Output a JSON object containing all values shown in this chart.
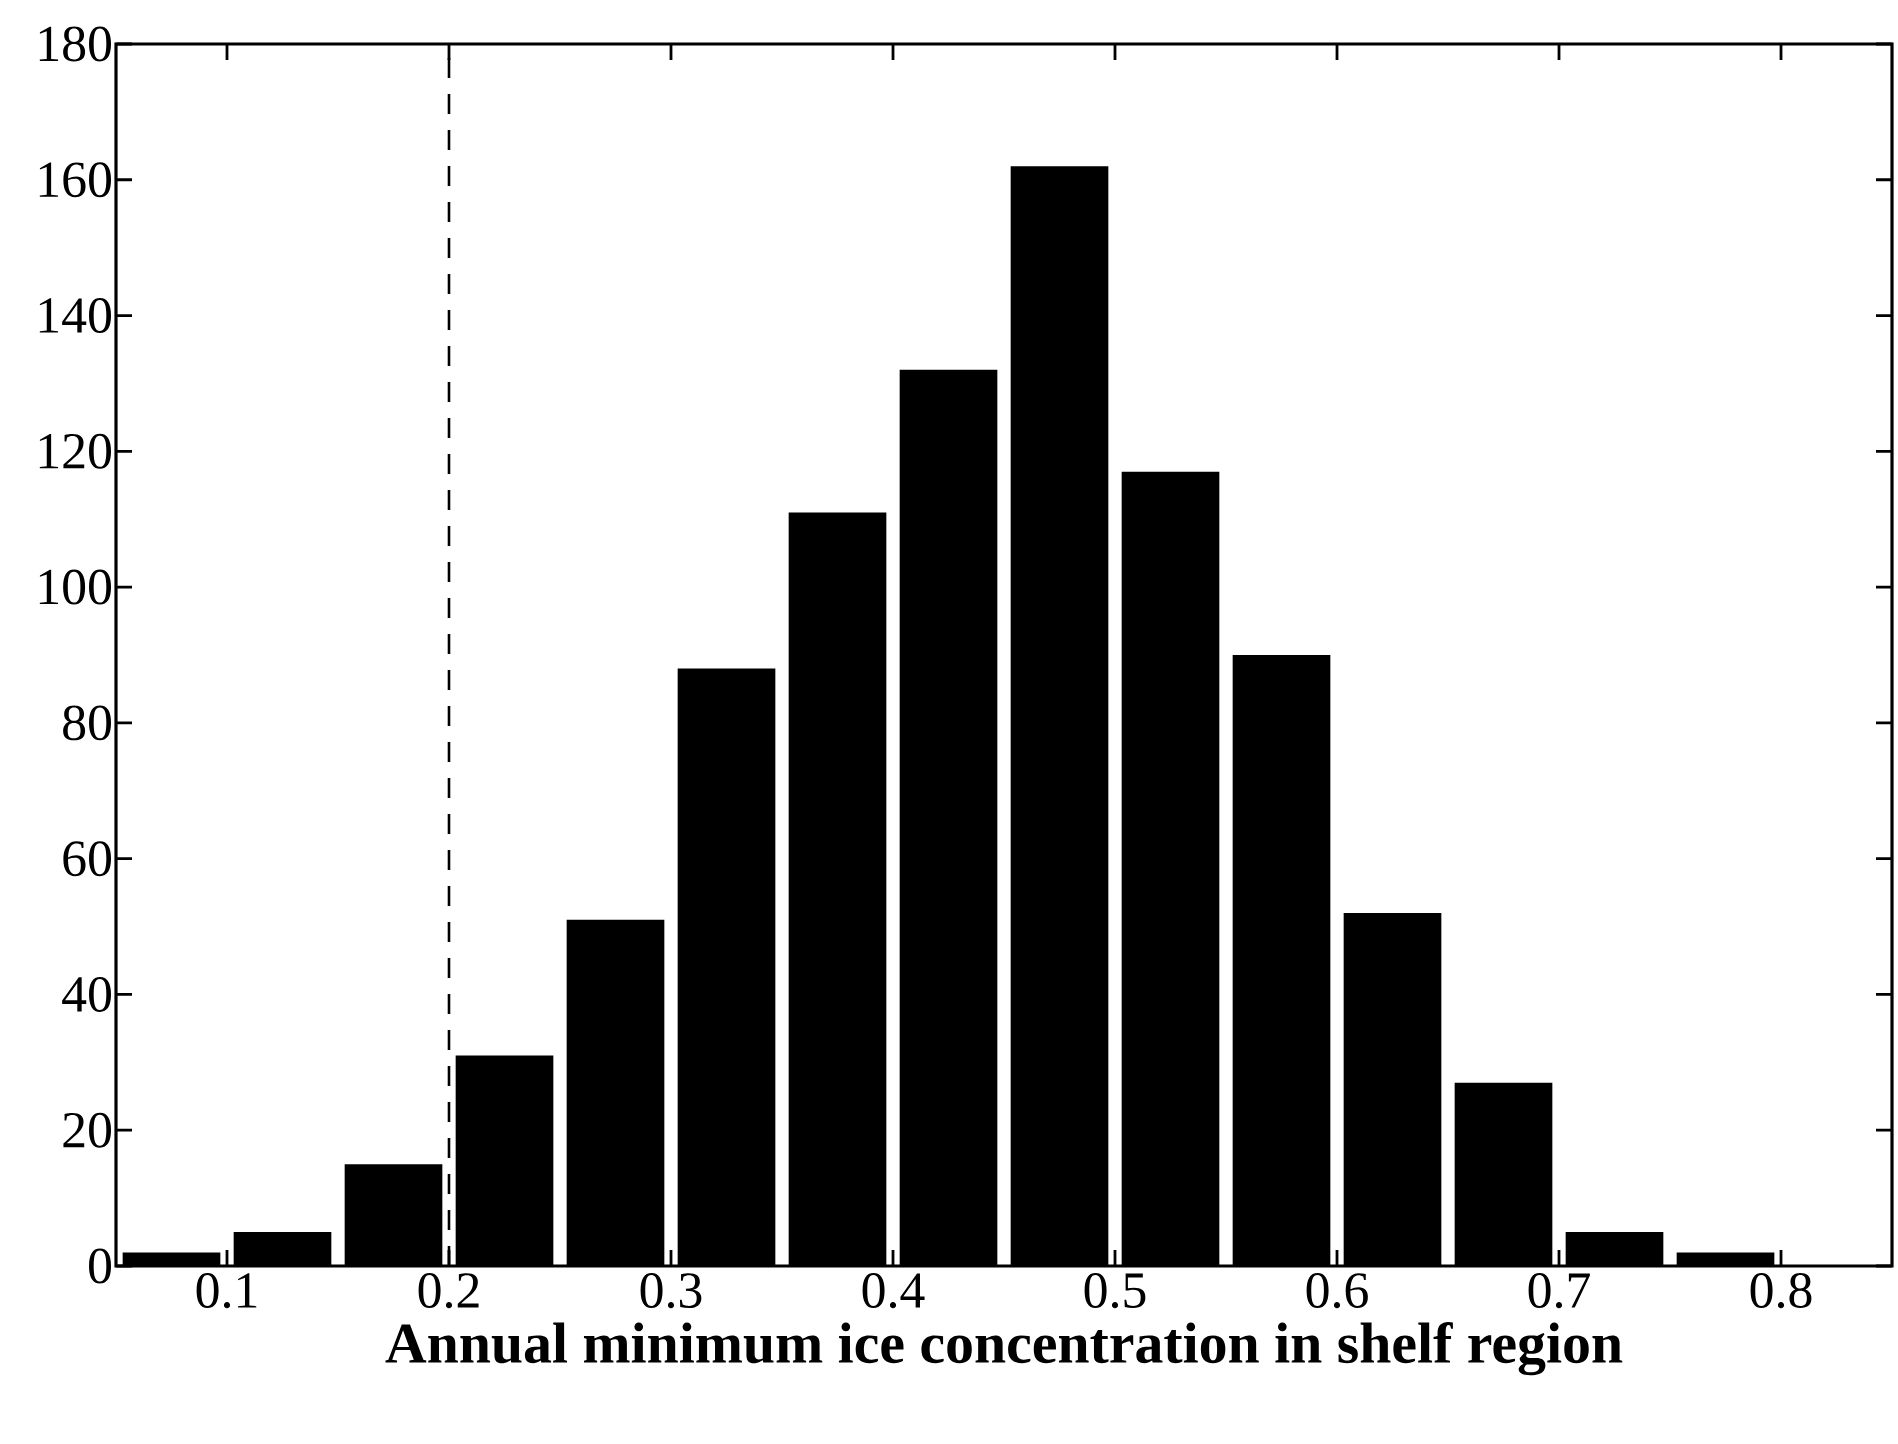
{
  "chart_data": {
    "type": "histogram",
    "xlabel": "Annual minimum ice concentration in shelf region",
    "bins": [
      0.05,
      0.1,
      0.15,
      0.2,
      0.25,
      0.3,
      0.35,
      0.4,
      0.45,
      0.5,
      0.55,
      0.6,
      0.65,
      0.7,
      0.75,
      0.8
    ],
    "values": [
      2,
      5,
      15,
      31,
      51,
      88,
      111,
      132,
      162,
      117,
      90,
      52,
      27,
      5,
      2
    ],
    "color": "#000000",
    "xlim": [
      0.05,
      0.85
    ],
    "ylim": [
      0,
      180
    ],
    "xticks": [
      0.1,
      0.2,
      0.3,
      0.4,
      0.5,
      0.6,
      0.7,
      0.8
    ],
    "yticks": [
      0,
      20,
      40,
      60,
      80,
      100,
      120,
      140,
      160,
      180
    ],
    "ref_lines": [
      {
        "axis": "x",
        "value": 0.2,
        "line_style": "dashed"
      }
    ],
    "grid": false
  }
}
